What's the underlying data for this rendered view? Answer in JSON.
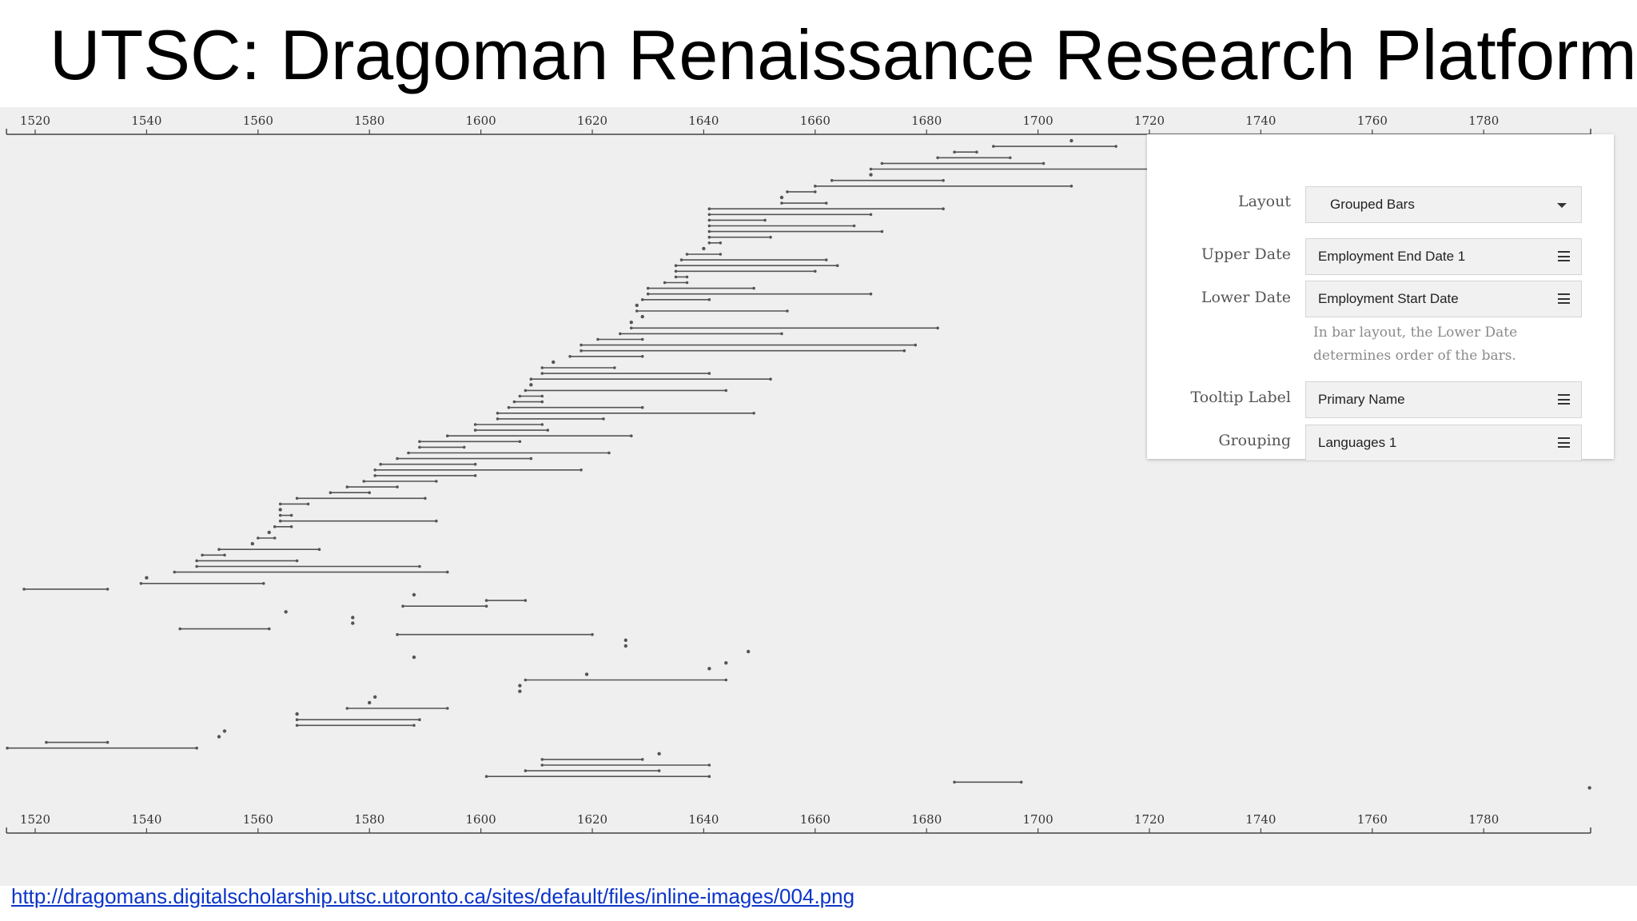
{
  "slide": {
    "title": "UTSC: Dragoman Renaissance Research Platform",
    "source_link": "http://dragomans.digitalscholarship.utsc.utoronto.ca/sites/default/files/inline-images/004.png"
  },
  "controls": {
    "layout": {
      "label": "Layout",
      "value": "Grouped Bars"
    },
    "upper_date": {
      "label": "Upper Date",
      "value": "Employment End Date 1"
    },
    "lower_date": {
      "label": "Lower Date",
      "value": "Employment Start Date"
    },
    "help_text": "In bar layout, the Lower Date determines order of the bars.",
    "tooltip_label": {
      "label": "Tooltip Label",
      "value": "Primary Name"
    },
    "grouping": {
      "label": "Grouping",
      "value": "Languages 1"
    }
  },
  "colors": {
    "bar": "#555555",
    "axis": "#444444",
    "tick_text": "#333333",
    "background": "#efefef",
    "link": "#0b35c9"
  },
  "chart_data": {
    "type": "timeline",
    "axis_ticks": [
      1520,
      1540,
      1560,
      1580,
      1600,
      1620,
      1640,
      1660,
      1680,
      1700,
      1720,
      1740,
      1760,
      1780
    ],
    "xlim": [
      1515,
      1799
    ],
    "bars": [
      [
        1706,
        1706
      ],
      [
        1692,
        1714
      ],
      [
        1685,
        1689
      ],
      [
        1682,
        1695
      ],
      [
        1672,
        1701
      ],
      [
        1670,
        1720
      ],
      [
        1670,
        1670
      ],
      [
        1663,
        1683
      ],
      [
        1660,
        1706
      ],
      [
        1655,
        1660
      ],
      [
        1654,
        1654
      ],
      [
        1654,
        1662
      ],
      [
        1641,
        1683
      ],
      [
        1641,
        1670
      ],
      [
        1641,
        1651
      ],
      [
        1641,
        1667
      ],
      [
        1641,
        1672
      ],
      [
        1641,
        1652
      ],
      [
        1641,
        1643
      ],
      [
        1640,
        1640
      ],
      [
        1637,
        1643
      ],
      [
        1636,
        1662
      ],
      [
        1635,
        1664
      ],
      [
        1635,
        1660
      ],
      [
        1635,
        1637
      ],
      [
        1633,
        1637
      ],
      [
        1630,
        1649
      ],
      [
        1630,
        1670
      ],
      [
        1629,
        1641
      ],
      [
        1628,
        1628
      ],
      [
        1628,
        1655
      ],
      [
        1629,
        1629
      ],
      [
        1627,
        1627
      ],
      [
        1627,
        1682
      ],
      [
        1625,
        1654
      ],
      [
        1621,
        1629
      ],
      [
        1618,
        1678
      ],
      [
        1618,
        1676
      ],
      [
        1616,
        1629
      ],
      [
        1613,
        1613
      ],
      [
        1611,
        1624
      ],
      [
        1611,
        1641
      ],
      [
        1609,
        1652
      ],
      [
        1609,
        1609
      ],
      [
        1608,
        1644
      ],
      [
        1607,
        1611
      ],
      [
        1606,
        1611
      ],
      [
        1605,
        1629
      ],
      [
        1603,
        1649
      ],
      [
        1603,
        1622
      ],
      [
        1599,
        1611
      ],
      [
        1599,
        1612
      ],
      [
        1594,
        1627
      ],
      [
        1589,
        1607
      ],
      [
        1589,
        1597
      ],
      [
        1587,
        1623
      ],
      [
        1585,
        1609
      ],
      [
        1582,
        1599
      ],
      [
        1581,
        1618
      ],
      [
        1581,
        1599
      ],
      [
        1579,
        1592
      ],
      [
        1576,
        1585
      ],
      [
        1573,
        1580
      ],
      [
        1567,
        1590
      ],
      [
        1564,
        1569
      ],
      [
        1564,
        1564
      ],
      [
        1564,
        1566
      ],
      [
        1564,
        1592
      ],
      [
        1563,
        1566
      ],
      [
        1562,
        1562
      ],
      [
        1560,
        1563
      ],
      [
        1559,
        1559
      ],
      [
        1553,
        1571
      ],
      [
        1550,
        1554
      ],
      [
        1549,
        1567
      ],
      [
        1549,
        1589
      ],
      [
        1545,
        1594
      ],
      [
        1540,
        1540
      ],
      [
        1539,
        1561
      ],
      [
        1518,
        1533
      ],
      [
        1588,
        1588
      ],
      [
        1601,
        1608
      ],
      [
        1586,
        1601
      ],
      [
        1565,
        1565
      ],
      [
        1577,
        1577
      ],
      [
        1577,
        1577
      ],
      [
        1546,
        1562
      ],
      [
        1585,
        1620
      ],
      [
        1626,
        1626
      ],
      [
        1626,
        1626
      ],
      [
        1648,
        1648
      ],
      [
        1588,
        1588
      ],
      [
        1644,
        1644
      ],
      [
        1641,
        1641
      ],
      [
        1619,
        1619
      ],
      [
        1608,
        1644
      ],
      [
        1607,
        1607
      ],
      [
        1607,
        1607
      ],
      [
        1581,
        1581
      ],
      [
        1580,
        1580
      ],
      [
        1576,
        1594
      ],
      [
        1567,
        1567
      ],
      [
        1567,
        1589
      ],
      [
        1567,
        1588
      ],
      [
        1554,
        1554
      ],
      [
        1553,
        1553
      ],
      [
        1522,
        1533
      ],
      [
        1515,
        1549
      ],
      [
        1632,
        1632
      ],
      [
        1611,
        1629
      ],
      [
        1611,
        1641
      ],
      [
        1608,
        1632
      ],
      [
        1601,
        1641
      ],
      [
        1685,
        1697
      ],
      [
        1799,
        1799
      ]
    ]
  }
}
